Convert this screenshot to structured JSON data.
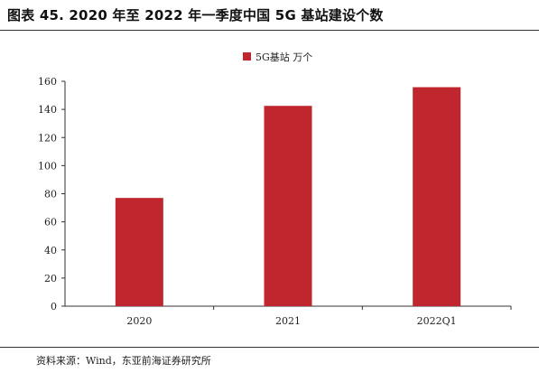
{
  "title": "图表 45. 2020 年至 2022 年一季度中国 5G 基站建设个数",
  "source": "资料来源：Wind，东亚前海证券研究所",
  "colors": {
    "bar": "#c0262d",
    "axis": "#333333"
  },
  "chart_data": {
    "type": "bar",
    "categories": [
      "2020",
      "2021",
      "2022Q1"
    ],
    "series": [
      {
        "name": "5G基站 万个",
        "values": [
          77,
          142.5,
          155.8
        ]
      }
    ],
    "ylim": [
      0,
      160
    ],
    "yticks": [
      0,
      20,
      40,
      60,
      80,
      100,
      120,
      140,
      160
    ],
    "xlabel": "",
    "ylabel": "",
    "grid": false,
    "legend_position": "top-center"
  }
}
